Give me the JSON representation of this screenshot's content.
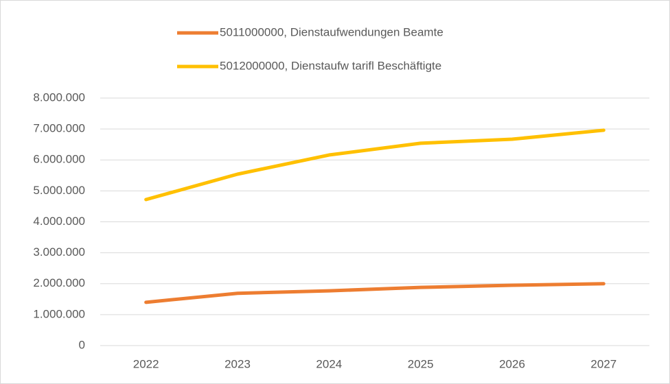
{
  "chart_data": {
    "type": "line",
    "categories": [
      "2022",
      "2023",
      "2024",
      "2025",
      "2026",
      "2027"
    ],
    "series": [
      {
        "name": "5011000000, Dienstaufwendungen Beamte",
        "color": "#ed7d31",
        "values": [
          1400000,
          1690000,
          1770000,
          1880000,
          1950000,
          2000000
        ]
      },
      {
        "name": "5012000000, Dienstaufw tarifl Beschäftigte",
        "color": "#ffc000",
        "values": [
          4720000,
          5540000,
          6160000,
          6540000,
          6670000,
          6960000
        ]
      }
    ],
    "ylim": [
      0,
      8000000
    ],
    "yticks": [
      0,
      {
        "value": 1000000,
        "label": "1.000.000"
      },
      {
        "value": 2000000,
        "label": "2.000.000"
      },
      {
        "value": 3000000,
        "label": "3.000.000"
      },
      {
        "value": 4000000,
        "label": "4.000.000"
      },
      {
        "value": 5000000,
        "label": "5.000.000"
      },
      {
        "value": 6000000,
        "label": "6.000.000"
      },
      {
        "value": 7000000,
        "label": "7.000.000"
      },
      {
        "value": 8000000,
        "label": "8.000.000"
      }
    ],
    "grid": true,
    "legend": "top"
  }
}
